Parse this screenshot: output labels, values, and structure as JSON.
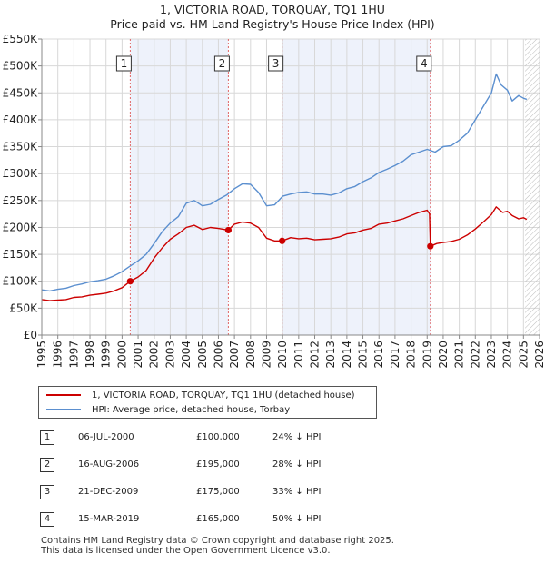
{
  "title": {
    "line1": "1, VICTORIA ROAD, TORQUAY, TQ1 1HU",
    "line2": "Price paid vs. HM Land Registry's House Price Index (HPI)"
  },
  "legend": {
    "property_label": "1, VICTORIA ROAD, TORQUAY, TQ1 1HU (detached house)",
    "hpi_label": "HPI: Average price, detached house, Torbay"
  },
  "colors": {
    "property": "#cc0000",
    "hpi": "#5b8fcf",
    "shade": "#eef2fb",
    "marker_line": "#e06666",
    "grid": "#d8d8d8",
    "hatch": "#bbbbbb"
  },
  "sales": [
    {
      "num": "1",
      "date": "06-JUL-2000",
      "price": "£100,000",
      "hpi_diff": "24% ↓ HPI"
    },
    {
      "num": "2",
      "date": "16-AUG-2006",
      "price": "£195,000",
      "hpi_diff": "28% ↓ HPI"
    },
    {
      "num": "3",
      "date": "21-DEC-2009",
      "price": "£175,000",
      "hpi_diff": "33% ↓ HPI"
    },
    {
      "num": "4",
      "date": "15-MAR-2019",
      "price": "£165,000",
      "hpi_diff": "50% ↓ HPI"
    }
  ],
  "footer": {
    "line1": "Contains HM Land Registry data © Crown copyright and database right 2025.",
    "line2": "This data is licensed under the Open Government Licence v3.0."
  },
  "chart_data": {
    "type": "line",
    "title": "1, VICTORIA ROAD, TORQUAY, TQ1 1HU — Price paid vs. HM Land Registry's House Price Index (HPI)",
    "xlabel": "",
    "ylabel": "",
    "xlim": [
      1995,
      2026
    ],
    "ylim": [
      0,
      550000
    ],
    "x_ticks": [
      1995,
      1996,
      1997,
      1998,
      1999,
      2000,
      2001,
      2002,
      2003,
      2004,
      2005,
      2006,
      2007,
      2008,
      2009,
      2010,
      2011,
      2012,
      2013,
      2014,
      2015,
      2016,
      2017,
      2018,
      2019,
      2020,
      2021,
      2022,
      2023,
      2024,
      2025,
      2026
    ],
    "y_ticks": [
      {
        "value": 0,
        "label": "£0"
      },
      {
        "value": 50000,
        "label": "£50K"
      },
      {
        "value": 100000,
        "label": "£100K"
      },
      {
        "value": 150000,
        "label": "£150K"
      },
      {
        "value": 200000,
        "label": "£200K"
      },
      {
        "value": 250000,
        "label": "£250K"
      },
      {
        "value": 300000,
        "label": "£300K"
      },
      {
        "value": 350000,
        "label": "£350K"
      },
      {
        "value": 400000,
        "label": "£400K"
      },
      {
        "value": 450000,
        "label": "£450K"
      },
      {
        "value": 500000,
        "label": "£500K"
      },
      {
        "value": 550000,
        "label": "£550K"
      }
    ],
    "grid": true,
    "shaded_periods": [
      [
        2000.51,
        2006.62
      ],
      [
        2009.97,
        2019.2
      ]
    ],
    "future_hatch_from": 2025.1,
    "sale_markers": [
      {
        "label": "1",
        "x": 2000.51,
        "y": 100000
      },
      {
        "label": "2",
        "x": 2006.62,
        "y": 195000
      },
      {
        "label": "3",
        "x": 2009.97,
        "y": 175000
      },
      {
        "label": "4",
        "x": 2019.2,
        "y": 165000
      }
    ],
    "series": [
      {
        "name": "1, VICTORIA ROAD, TORQUAY, TQ1 1HU (detached house)",
        "x": [
          1995.0,
          1995.5,
          1996.0,
          1996.5,
          1997.0,
          1997.5,
          1998.0,
          1998.5,
          1999.0,
          1999.5,
          2000.0,
          2000.51,
          2001.0,
          2001.5,
          2002.0,
          2002.5,
          2003.0,
          2003.5,
          2004.0,
          2004.5,
          2005.0,
          2005.5,
          2006.0,
          2006.62,
          2007.0,
          2007.5,
          2008.0,
          2008.5,
          2009.0,
          2009.5,
          2009.97,
          2010.5,
          2011.0,
          2011.5,
          2012.0,
          2012.5,
          2013.0,
          2013.5,
          2014.0,
          2014.5,
          2015.0,
          2015.5,
          2016.0,
          2016.5,
          2017.0,
          2017.5,
          2018.0,
          2018.5,
          2019.0,
          2019.15,
          2019.2,
          2019.6,
          2020.0,
          2020.5,
          2021.0,
          2021.5,
          2022.0,
          2022.5,
          2023.0,
          2023.3,
          2023.7,
          2024.0,
          2024.3,
          2024.7,
          2025.0,
          2025.2
        ],
        "values": [
          66000,
          64000,
          65000,
          66000,
          70000,
          71000,
          74000,
          76000,
          78000,
          82000,
          88000,
          100000,
          108000,
          120000,
          143000,
          162000,
          178000,
          188000,
          200000,
          204000,
          196000,
          200000,
          198000,
          195000,
          206000,
          210000,
          208000,
          200000,
          180000,
          175000,
          175000,
          181000,
          179000,
          180000,
          177000,
          178000,
          179000,
          182000,
          188000,
          190000,
          195000,
          198000,
          206000,
          208000,
          212000,
          216000,
          222000,
          228000,
          232000,
          225000,
          165000,
          170000,
          172000,
          174000,
          178000,
          186000,
          197000,
          210000,
          224000,
          238000,
          228000,
          230000,
          222000,
          216000,
          218000,
          215000
        ]
      },
      {
        "name": "HPI: Average price, detached house, Torbay",
        "x": [
          1995.0,
          1995.5,
          1996.0,
          1996.5,
          1997.0,
          1997.5,
          1998.0,
          1998.5,
          1999.0,
          1999.5,
          2000.0,
          2000.5,
          2001.0,
          2001.5,
          2002.0,
          2002.5,
          2003.0,
          2003.5,
          2004.0,
          2004.5,
          2005.0,
          2005.5,
          2006.0,
          2006.5,
          2007.0,
          2007.5,
          2008.0,
          2008.5,
          2009.0,
          2009.5,
          2010.0,
          2010.5,
          2011.0,
          2011.5,
          2012.0,
          2012.5,
          2013.0,
          2013.5,
          2014.0,
          2014.5,
          2015.0,
          2015.5,
          2016.0,
          2016.5,
          2017.0,
          2017.5,
          2018.0,
          2018.5,
          2019.0,
          2019.5,
          2020.0,
          2020.5,
          2021.0,
          2021.5,
          2022.0,
          2022.5,
          2023.0,
          2023.3,
          2023.6,
          2024.0,
          2024.3,
          2024.7,
          2025.0,
          2025.2
        ],
        "values": [
          84000,
          82000,
          85000,
          87000,
          92000,
          95000,
          99000,
          101000,
          104000,
          110000,
          118000,
          128000,
          138000,
          150000,
          170000,
          192000,
          208000,
          220000,
          245000,
          250000,
          240000,
          243000,
          252000,
          260000,
          272000,
          281000,
          280000,
          265000,
          240000,
          242000,
          258000,
          262000,
          265000,
          266000,
          262000,
          262000,
          260000,
          264000,
          272000,
          276000,
          285000,
          292000,
          302000,
          308000,
          315000,
          323000,
          335000,
          340000,
          345000,
          340000,
          350000,
          352000,
          362000,
          375000,
          400000,
          425000,
          450000,
          485000,
          465000,
          455000,
          435000,
          445000,
          440000,
          438000
        ]
      }
    ]
  }
}
